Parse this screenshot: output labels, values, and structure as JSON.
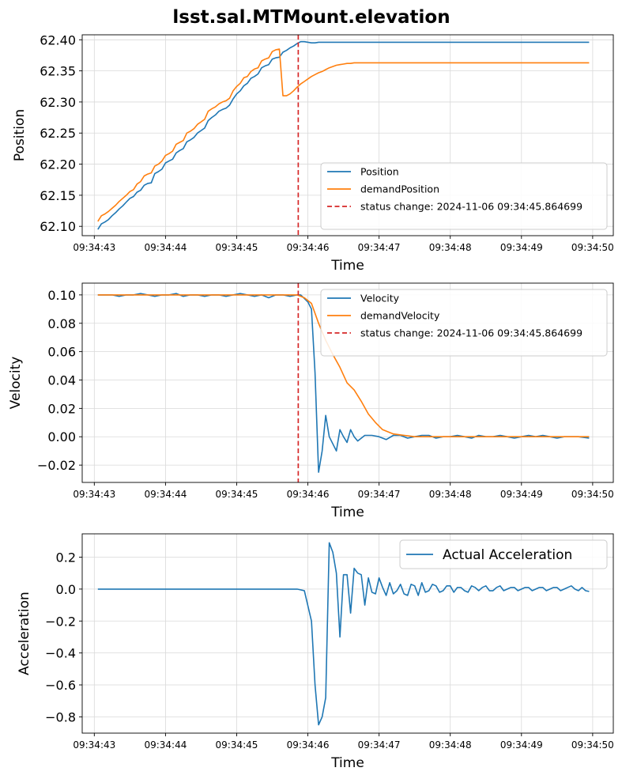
{
  "figure_title": "lsst.sal.MTMount.elevation",
  "colors": {
    "series_blue": "#1f77b4",
    "series_orange": "#ff7f0e",
    "status_red": "#d62728",
    "grid": "#d9d9d9"
  },
  "chart_data": [
    {
      "type": "line",
      "xlabel": "Time",
      "ylabel": "Position",
      "x_ticks": [
        "09:34:43",
        "09:34:44",
        "09:34:45",
        "09:34:46",
        "09:34:47",
        "09:34:48",
        "09:34:49",
        "09:34:50"
      ],
      "x_range_seconds": [
        42.83,
        50.29
      ],
      "ylim": [
        62.085,
        62.408
      ],
      "y_ticks": [
        "62.10",
        "62.15",
        "62.20",
        "62.25",
        "62.30",
        "62.35",
        "62.40"
      ],
      "grid": true,
      "legend_position": "lower-right",
      "vline": {
        "x": 45.8647,
        "label": "status change: 2024-11-06 09:34:45.864699"
      },
      "series": [
        {
          "name": "Position",
          "color": "#1f77b4",
          "x": [
            43.05,
            43.1,
            43.15,
            43.2,
            43.25,
            43.3,
            43.35,
            43.4,
            43.45,
            43.5,
            43.55,
            43.6,
            43.65,
            43.7,
            43.75,
            43.8,
            43.85,
            43.9,
            43.95,
            44.0,
            44.05,
            44.1,
            44.15,
            44.2,
            44.25,
            44.3,
            44.35,
            44.4,
            44.45,
            44.5,
            44.55,
            44.6,
            44.65,
            44.7,
            44.75,
            44.8,
            44.85,
            44.9,
            44.95,
            45.0,
            45.05,
            45.1,
            45.15,
            45.2,
            45.25,
            45.3,
            45.35,
            45.4,
            45.45,
            45.5,
            45.55,
            45.6,
            45.65,
            45.7,
            45.75,
            45.8,
            45.85,
            45.9,
            45.95,
            46.0,
            46.05,
            46.1,
            46.15,
            46.2,
            46.25,
            46.3,
            46.4,
            46.5,
            46.6,
            46.8,
            47.0,
            47.5,
            48.0,
            48.5,
            49.0,
            49.5,
            49.95
          ],
          "y": [
            62.095,
            62.104,
            62.107,
            62.111,
            62.117,
            62.122,
            62.128,
            62.133,
            62.139,
            62.145,
            62.148,
            62.155,
            62.158,
            62.166,
            62.169,
            62.17,
            62.185,
            62.188,
            62.192,
            62.202,
            62.205,
            62.208,
            62.218,
            62.222,
            62.225,
            62.236,
            62.239,
            62.243,
            62.25,
            62.254,
            62.258,
            62.27,
            62.275,
            62.279,
            62.285,
            62.288,
            62.29,
            62.295,
            62.305,
            62.313,
            62.318,
            62.326,
            62.33,
            62.338,
            62.341,
            62.345,
            62.355,
            62.358,
            62.36,
            62.369,
            62.371,
            62.372,
            62.38,
            62.383,
            62.387,
            62.39,
            62.394,
            62.397,
            62.397,
            62.396,
            62.395,
            62.395,
            62.396,
            62.396,
            62.396,
            62.396,
            62.396,
            62.396,
            62.396,
            62.396,
            62.396,
            62.396,
            62.396,
            62.396,
            62.396,
            62.396,
            62.396
          ]
        },
        {
          "name": "demandPosition",
          "color": "#ff7f0e",
          "x": [
            43.05,
            43.1,
            43.15,
            43.2,
            43.25,
            43.3,
            43.35,
            43.4,
            43.45,
            43.5,
            43.55,
            43.6,
            43.65,
            43.7,
            43.75,
            43.8,
            43.85,
            43.9,
            43.95,
            44.0,
            44.05,
            44.1,
            44.15,
            44.2,
            44.25,
            44.3,
            44.35,
            44.4,
            44.45,
            44.5,
            44.55,
            44.6,
            44.65,
            44.7,
            44.75,
            44.8,
            44.85,
            44.9,
            44.95,
            45.0,
            45.05,
            45.1,
            45.15,
            45.2,
            45.25,
            45.3,
            45.35,
            45.4,
            45.45,
            45.5,
            45.55,
            45.6,
            45.65,
            45.7,
            45.75,
            45.8,
            45.85,
            45.9,
            45.95,
            46.0,
            46.05,
            46.1,
            46.15,
            46.2,
            46.25,
            46.3,
            46.35,
            46.4,
            46.45,
            46.5,
            46.55,
            46.6,
            46.65,
            46.7,
            46.8,
            46.9,
            47.0,
            47.2,
            47.5,
            48.0,
            48.5,
            49.0,
            49.5,
            49.95
          ],
          "y": [
            62.108,
            62.117,
            62.12,
            62.124,
            62.129,
            62.134,
            62.14,
            62.145,
            62.15,
            62.156,
            62.159,
            62.168,
            62.172,
            62.181,
            62.184,
            62.186,
            62.197,
            62.2,
            62.205,
            62.214,
            62.217,
            62.221,
            62.232,
            62.235,
            62.238,
            62.25,
            62.253,
            62.257,
            62.264,
            62.268,
            62.272,
            62.285,
            62.289,
            62.292,
            62.297,
            62.3,
            62.302,
            62.306,
            62.318,
            62.325,
            62.33,
            62.339,
            62.341,
            62.349,
            62.353,
            62.355,
            62.366,
            62.369,
            62.371,
            62.381,
            62.384,
            62.385,
            62.31,
            62.31,
            62.313,
            62.318,
            62.324,
            62.329,
            62.333,
            62.337,
            62.341,
            62.344,
            62.347,
            62.349,
            62.352,
            62.355,
            62.357,
            62.359,
            62.36,
            62.361,
            62.362,
            62.362,
            62.363,
            62.363,
            62.363,
            62.363,
            62.363,
            62.363,
            62.363,
            62.363,
            62.363,
            62.363,
            62.363,
            62.363
          ]
        }
      ]
    },
    {
      "type": "line",
      "xlabel": "Time",
      "ylabel": "Velocity",
      "x_ticks": [
        "09:34:43",
        "09:34:44",
        "09:34:45",
        "09:34:46",
        "09:34:47",
        "09:34:48",
        "09:34:49",
        "09:34:50"
      ],
      "x_range_seconds": [
        42.83,
        50.29
      ],
      "ylim": [
        -0.0322,
        0.1083
      ],
      "y_ticks": [
        "−0.02",
        "0.00",
        "0.02",
        "0.04",
        "0.06",
        "0.08",
        "0.10"
      ],
      "grid": true,
      "legend_position": "upper-right",
      "vline": {
        "x": 45.8647,
        "label": "status change: 2024-11-06 09:34:45.864699"
      },
      "series": [
        {
          "name": "Velocity",
          "color": "#1f77b4",
          "x": [
            43.05,
            43.15,
            43.25,
            43.35,
            43.45,
            43.55,
            43.65,
            43.75,
            43.85,
            43.95,
            44.05,
            44.15,
            44.25,
            44.35,
            44.45,
            44.55,
            44.65,
            44.75,
            44.85,
            44.95,
            45.05,
            45.15,
            45.25,
            45.35,
            45.45,
            45.55,
            45.65,
            45.75,
            45.85,
            45.9,
            46.0,
            46.05,
            46.1,
            46.15,
            46.2,
            46.25,
            46.3,
            46.35,
            46.4,
            46.45,
            46.5,
            46.55,
            46.6,
            46.65,
            46.7,
            46.8,
            46.9,
            47.0,
            47.1,
            47.2,
            47.3,
            47.4,
            47.5,
            47.6,
            47.7,
            47.8,
            47.9,
            48.0,
            48.1,
            48.2,
            48.3,
            48.4,
            48.5,
            48.6,
            48.7,
            48.8,
            48.9,
            49.0,
            49.1,
            49.2,
            49.3,
            49.4,
            49.5,
            49.6,
            49.7,
            49.8,
            49.95
          ],
          "y": [
            0.1,
            0.1,
            0.1,
            0.099,
            0.1,
            0.1,
            0.101,
            0.1,
            0.099,
            0.1,
            0.1,
            0.101,
            0.099,
            0.1,
            0.1,
            0.099,
            0.1,
            0.1,
            0.099,
            0.1,
            0.101,
            0.1,
            0.099,
            0.1,
            0.098,
            0.1,
            0.1,
            0.099,
            0.1,
            0.1,
            0.095,
            0.09,
            0.045,
            -0.025,
            -0.01,
            0.015,
            0.0,
            -0.005,
            -0.01,
            0.005,
            0.0,
            -0.004,
            0.005,
            0.0,
            -0.003,
            0.001,
            0.001,
            0.0,
            -0.002,
            0.001,
            0.001,
            -0.001,
            0.0,
            0.001,
            0.001,
            -0.001,
            0.0,
            0.0,
            0.001,
            0.0,
            -0.001,
            0.001,
            0.0,
            0.0,
            0.001,
            0.0,
            -0.001,
            0.0,
            0.001,
            0.0,
            0.001,
            0.0,
            -0.001,
            0.0,
            0.0,
            0.0,
            -0.001
          ]
        },
        {
          "name": "demandVelocity",
          "color": "#ff7f0e",
          "x": [
            43.05,
            43.5,
            44.0,
            44.5,
            45.0,
            45.5,
            45.85,
            45.95,
            46.05,
            46.15,
            46.25,
            46.35,
            46.45,
            46.55,
            46.65,
            46.75,
            46.85,
            46.95,
            47.05,
            47.2,
            47.5,
            48.0,
            48.5,
            49.0,
            49.5,
            49.95
          ],
          "y": [
            0.1,
            0.1,
            0.1,
            0.1,
            0.1,
            0.1,
            0.1,
            0.098,
            0.094,
            0.08,
            0.068,
            0.058,
            0.049,
            0.038,
            0.033,
            0.025,
            0.016,
            0.01,
            0.005,
            0.002,
            0.0,
            0.0,
            0.0,
            0.0,
            0.0,
            0.0
          ]
        }
      ]
    },
    {
      "type": "line",
      "xlabel": "Time",
      "ylabel": "Acceleration",
      "x_ticks": [
        "09:34:43",
        "09:34:44",
        "09:34:45",
        "09:34:46",
        "09:34:47",
        "09:34:48",
        "09:34:49",
        "09:34:50"
      ],
      "x_range_seconds": [
        42.83,
        50.29
      ],
      "ylim": [
        -0.902,
        0.346
      ],
      "y_ticks": [
        "−0.8",
        "−0.6",
        "−0.4",
        "−0.2",
        "0.0",
        "0.2"
      ],
      "grid": true,
      "legend_position": "upper-right",
      "series": [
        {
          "name": "Actual Acceleration",
          "color": "#1f77b4",
          "x": [
            43.05,
            43.5,
            44.0,
            44.5,
            45.0,
            45.5,
            45.85,
            45.95,
            46.05,
            46.1,
            46.15,
            46.2,
            46.25,
            46.3,
            46.35,
            46.4,
            46.45,
            46.5,
            46.55,
            46.6,
            46.65,
            46.7,
            46.75,
            46.8,
            46.85,
            46.9,
            46.95,
            47.0,
            47.05,
            47.1,
            47.15,
            47.2,
            47.25,
            47.3,
            47.35,
            47.4,
            47.45,
            47.5,
            47.55,
            47.6,
            47.65,
            47.7,
            47.75,
            47.8,
            47.85,
            47.9,
            47.95,
            48.0,
            48.05,
            48.1,
            48.15,
            48.2,
            48.25,
            48.3,
            48.35,
            48.4,
            48.45,
            48.5,
            48.55,
            48.6,
            48.65,
            48.7,
            48.75,
            48.8,
            48.85,
            48.9,
            48.95,
            49.0,
            49.05,
            49.1,
            49.15,
            49.2,
            49.25,
            49.3,
            49.35,
            49.4,
            49.45,
            49.5,
            49.55,
            49.6,
            49.65,
            49.7,
            49.75,
            49.8,
            49.85,
            49.9,
            49.95
          ],
          "y": [
            0.0,
            0.0,
            0.0,
            0.0,
            0.0,
            0.0,
            0.0,
            -0.01,
            -0.2,
            -0.6,
            -0.85,
            -0.8,
            -0.68,
            0.29,
            0.23,
            0.1,
            -0.3,
            0.09,
            0.09,
            -0.15,
            0.13,
            0.1,
            0.09,
            -0.1,
            0.07,
            -0.02,
            -0.03,
            0.07,
            0.01,
            -0.04,
            0.04,
            -0.03,
            -0.01,
            0.03,
            -0.03,
            -0.04,
            0.03,
            0.02,
            -0.04,
            0.04,
            -0.02,
            -0.01,
            0.03,
            0.02,
            -0.02,
            -0.01,
            0.02,
            0.02,
            -0.02,
            0.01,
            0.01,
            -0.01,
            -0.02,
            0.02,
            0.01,
            -0.01,
            0.01,
            0.02,
            -0.01,
            -0.01,
            0.01,
            0.02,
            -0.01,
            0.0,
            0.01,
            0.01,
            -0.01,
            0.0,
            0.01,
            0.01,
            -0.01,
            0.0,
            0.01,
            0.01,
            -0.01,
            0.0,
            0.01,
            0.01,
            -0.01,
            0.0,
            0.01,
            0.02,
            0.0,
            -0.01,
            0.01,
            -0.01,
            -0.015
          ]
        }
      ]
    }
  ]
}
